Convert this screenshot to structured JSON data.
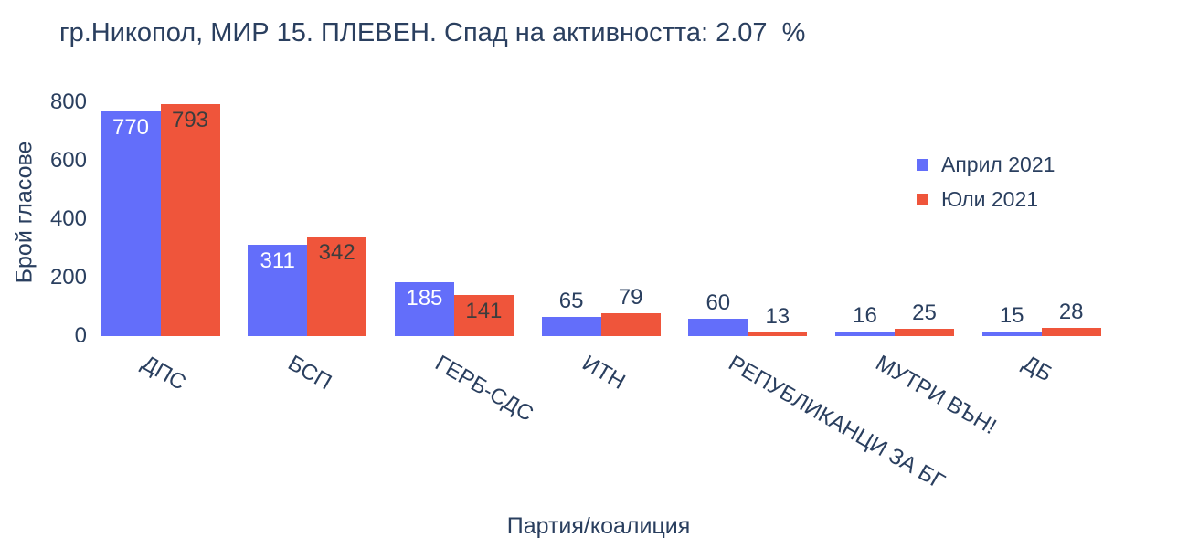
{
  "chart_data": {
    "type": "bar",
    "title": "гр.Никопол, МИР 15. ПЛЕВЕН. Спад на активността: 2.07  %",
    "categories": [
      "ДПС",
      "БСП",
      "ГЕРБ-СДС",
      "ИТН",
      "РЕПУБЛИКАНЦИ ЗА БГ",
      "МУТРИ ВЪН!",
      "ДБ"
    ],
    "series": [
      {
        "name": "Април 2021",
        "color": "#636efa",
        "inside_label_color": "#ffffff",
        "values": [
          770,
          311,
          185,
          65,
          60,
          16,
          15
        ]
      },
      {
        "name": "Юли 2021",
        "color": "#ef553b",
        "inside_label_color": "#3d3d3d",
        "values": [
          793,
          342,
          141,
          79,
          13,
          25,
          28
        ]
      }
    ],
    "xlabel": "Партия/коалиция",
    "ylabel": "Брой гласове",
    "ylim": [
      0,
      800
    ],
    "yticks": [
      0,
      200,
      400,
      600,
      800
    ],
    "grid": false,
    "legend_position": "right",
    "outside_label_color": "#2a3f5f",
    "background_color": "#ffffff"
  }
}
